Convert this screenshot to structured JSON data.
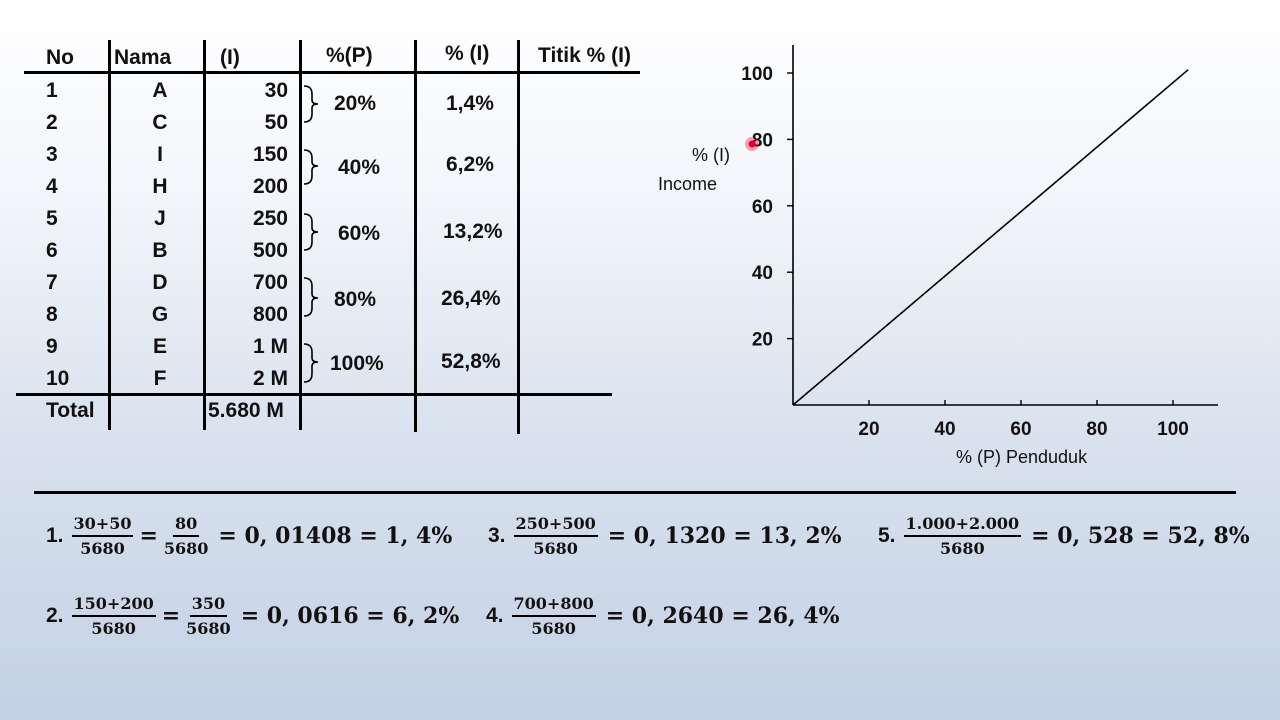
{
  "table": {
    "headers": [
      "No",
      "Nama",
      "(I)",
      "%(P)",
      "% (I)",
      "Titik % (I)"
    ],
    "rows": [
      {
        "no": "1",
        "nama": "A",
        "i": "30"
      },
      {
        "no": "2",
        "nama": "C",
        "i": "50"
      },
      {
        "no": "3",
        "nama": "I",
        "i": "150"
      },
      {
        "no": "4",
        "nama": "H",
        "i": "200"
      },
      {
        "no": "5",
        "nama": "J",
        "i": "250"
      },
      {
        "no": "6",
        "nama": "B",
        "i": "500"
      },
      {
        "no": "7",
        "nama": "D",
        "i": "700"
      },
      {
        "no": "8",
        "nama": "G",
        "i": "800"
      },
      {
        "no": "9",
        "nama": "E",
        "i": "1 M"
      },
      {
        "no": "10",
        "nama": "F",
        "i": "2 M"
      }
    ],
    "groups": [
      {
        "p": "20%",
        "pct_i": "1,4%"
      },
      {
        "p": "40%",
        "pct_i": "6,2%"
      },
      {
        "p": "60%",
        "pct_i": "13,2%"
      },
      {
        "p": "80%",
        "pct_i": "26,4%"
      },
      {
        "p": "100%",
        "pct_i": "52,8%"
      }
    ],
    "total_label": "Total",
    "total_value": "5.680 M"
  },
  "chart_data": {
    "type": "line",
    "xlabel": "%  (P) Penduduk",
    "ylabel_line1": "% (I)",
    "ylabel_line2": "Income",
    "x_ticks": [
      20,
      40,
      60,
      80,
      100
    ],
    "y_ticks": [
      20,
      40,
      60,
      80,
      100
    ],
    "xlim": [
      0,
      115
    ],
    "ylim": [
      0,
      110
    ],
    "series": [
      {
        "x": [
          0,
          104
        ],
        "y": [
          0,
          101
        ]
      }
    ],
    "pointer_color": "#e8002a"
  },
  "equations": [
    {
      "n": "1.",
      "parts": [
        {
          "num": "30+50",
          "den": "5680"
        },
        {
          "num": "80",
          "den": "5680"
        }
      ],
      "result": "= 0, 01408 = 1, 4%"
    },
    {
      "n": "2.",
      "parts": [
        {
          "num": "150+200",
          "den": "5680"
        },
        {
          "num": "350",
          "den": "5680"
        }
      ],
      "result": "= 0, 0616 = 6, 2%"
    },
    {
      "n": "3.",
      "parts": [
        {
          "num": "250+500",
          "den": "5680"
        }
      ],
      "result": "= 0, 1320 = 13, 2%"
    },
    {
      "n": "4.",
      "parts": [
        {
          "num": "700+800",
          "den": "5680"
        }
      ],
      "result": "= 0, 2640 = 26, 4%"
    },
    {
      "n": "5.",
      "parts": [
        {
          "num": "1.000+2.000",
          "den": "5680"
        }
      ],
      "result": "= 0, 528 = 52, 8%"
    }
  ]
}
